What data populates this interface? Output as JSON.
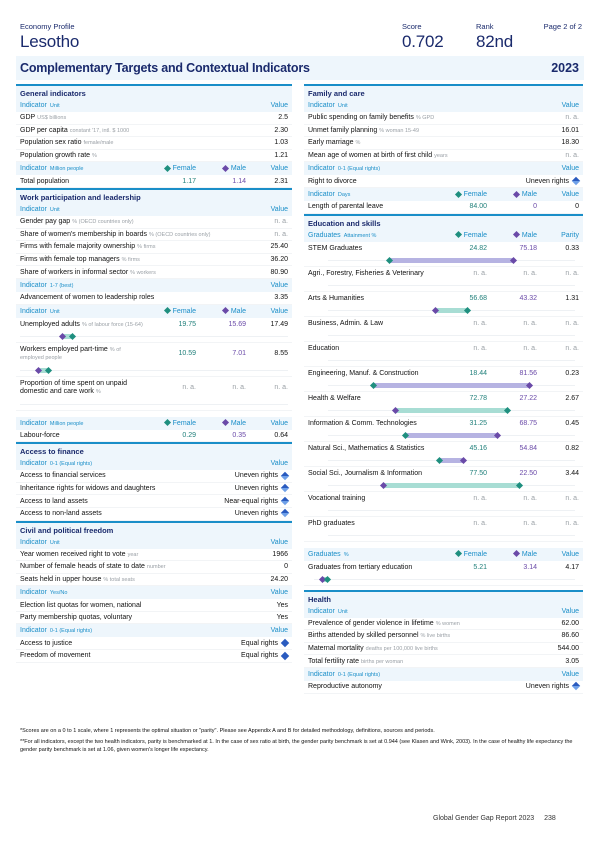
{
  "header": {
    "economy_profile_label": "Economy Profile",
    "country": "Lesotho",
    "score_label": "Score",
    "score": "0.702",
    "rank_label": "Rank",
    "rank": "82nd",
    "page_label": "Page 2 of 2"
  },
  "banner": {
    "title": "Complementary Targets and Contextual Indicators",
    "year": "2023"
  },
  "legend": {
    "female": "Female",
    "male": "Male",
    "value": "Value",
    "parity": "Parity",
    "indicator": "Indicator",
    "graduates": "Graduates"
  },
  "colors": {
    "accent": "#1a8ec8",
    "navy": "#1a2a6c",
    "female": "#1f8f7f",
    "male": "#6a4aa8",
    "female_bar": "#a8ddd4",
    "male_bar": "#b6b3e2",
    "header_bg": "#eef6fc"
  },
  "left": {
    "general": {
      "title": "General indicators",
      "h1": {
        "unit": "Unit"
      },
      "rows": [
        {
          "label": "GDP",
          "unit": "US$ billions",
          "value": "2.5"
        },
        {
          "label": "GDP per capita",
          "unit": "constant '17, intl. $ 1000",
          "value": "2.30"
        },
        {
          "label": "Population sex ratio",
          "unit": "female/male",
          "value": "1.03"
        },
        {
          "label": "Population growth rate",
          "unit": "%",
          "value": "1.21"
        }
      ],
      "h2": {
        "unit": "Million people"
      },
      "rows2": [
        {
          "label": "Total population",
          "female": "1.17",
          "male": "1.14",
          "value": "2.31"
        }
      ]
    },
    "work": {
      "title": "Work participation and leadership",
      "h1": {
        "unit": "Unit"
      },
      "rows": [
        {
          "label": "Gender pay gap",
          "unit": "% (OECD countries only)",
          "value": "n. a."
        },
        {
          "label": "Share of women's membership in boards",
          "unit": "% (OECD countries only)",
          "value": "n. a."
        },
        {
          "label": "Firms with female majority ownership",
          "unit": "% firms",
          "value": "25.40"
        },
        {
          "label": "Firms with female top managers",
          "unit": "% firms",
          "value": "36.20"
        },
        {
          "label": "Share of workers in informal sector",
          "unit": "% workers",
          "value": "80.90"
        }
      ],
      "h2": {
        "unit": "1-7 (best)"
      },
      "rows2": [
        {
          "label": "Advancement of women to leadership roles",
          "value": "3.35"
        }
      ],
      "h3": {
        "unit": "Unit"
      },
      "rows3": [
        {
          "label": "Unemployed adults",
          "unit": "% of labour force (15-64)",
          "female": "19.75",
          "male": "15.69",
          "value": "17.49",
          "f_pos": 19.75,
          "m_pos": 15.69
        },
        {
          "label": "Workers employed part-time",
          "unit": "% of employed people",
          "female": "10.59",
          "male": "7.01",
          "value": "8.55",
          "f_pos": 10.59,
          "m_pos": 7.01
        },
        {
          "label": "Proportion of time spent on unpaid domestic and care work",
          "unit": "%",
          "female": "n. a.",
          "male": "n. a.",
          "value": "n. a."
        }
      ],
      "h4": {
        "unit": "Million people"
      },
      "rows4": [
        {
          "label": "Labour-force",
          "female": "0.29",
          "male": "0.35",
          "value": "0.64"
        }
      ]
    },
    "finance": {
      "title": "Access to finance",
      "h1": {
        "unit": "0-1 (Equal rights)"
      },
      "rows": [
        {
          "label": "Access to financial services",
          "value": "Uneven rights"
        },
        {
          "label": "Inheritance rights for widows and daughters",
          "value": "Uneven rights"
        },
        {
          "label": "Access to land assets",
          "value": "Near-equal rights"
        },
        {
          "label": "Access to non-land assets",
          "value": "Uneven rights"
        }
      ]
    },
    "civil": {
      "title": "Civil and political freedom",
      "h1": {
        "unit": "Unit"
      },
      "rows": [
        {
          "label": "Year women received right to vote",
          "unit": "year",
          "value": "1966"
        },
        {
          "label": "Number of female heads of state to date",
          "unit": "number",
          "value": "0"
        },
        {
          "label": "Seats held in upper house",
          "unit": "% total seats",
          "value": "24.20"
        }
      ],
      "h2": {
        "unit": "Yes/No"
      },
      "rows2": [
        {
          "label": "Election list quotas for women, national",
          "value": "Yes"
        },
        {
          "label": "Party membership quotas, voluntary",
          "value": "Yes"
        }
      ],
      "h3": {
        "unit": "0-1 (Equal rights)"
      },
      "rows3": [
        {
          "label": "Access to justice",
          "value": "Equal rights"
        },
        {
          "label": "Freedom of movement",
          "value": "Equal rights"
        }
      ]
    }
  },
  "right": {
    "family": {
      "title": "Family and care",
      "h1": {
        "unit": "Unit"
      },
      "rows": [
        {
          "label": "Public spending on family benefits",
          "unit": "% GPD",
          "value": "n. a."
        },
        {
          "label": "Unmet family planning",
          "unit": "% woman 15-49",
          "value": "16.01"
        },
        {
          "label": "Early marriage",
          "unit": "%",
          "value": "18.30"
        },
        {
          "label": "Mean age of women at birth of first child",
          "unit": "years",
          "value": "n. a."
        }
      ],
      "h2": {
        "unit": "0-1 (Equal rights)"
      },
      "rows2": [
        {
          "label": "Right to divorce",
          "value": "Uneven rights"
        }
      ],
      "h3": {
        "unit": "Days"
      },
      "rows3": [
        {
          "label": "Length of parental leave",
          "female": "84.00",
          "male": "0",
          "value": "0"
        }
      ]
    },
    "education": {
      "title": "Education and skills",
      "h1": {
        "unit": "Attainment %"
      },
      "rows": [
        {
          "label": "STEM Graduates",
          "female": "24.82",
          "male": "75.18",
          "value": "0.33",
          "f_pos": 24.82,
          "m_pos": 75.18
        },
        {
          "label": "Agri., Forestry, Fisheries & Veterinary",
          "female": "n. a.",
          "male": "n. a.",
          "value": "n. a."
        },
        {
          "label": "Arts & Humanities",
          "female": "56.68",
          "male": "43.32",
          "value": "1.31",
          "f_pos": 56.68,
          "m_pos": 43.32
        },
        {
          "label": "Business, Admin. & Law",
          "female": "n. a.",
          "male": "n. a.",
          "value": "n. a."
        },
        {
          "label": "Education",
          "female": "n. a.",
          "male": "n. a.",
          "value": "n. a."
        },
        {
          "label": "Engineering, Manuf. & Construction",
          "female": "18.44",
          "male": "81.56",
          "value": "0.23",
          "f_pos": 18.44,
          "m_pos": 81.56
        },
        {
          "label": "Health & Welfare",
          "female": "72.78",
          "male": "27.22",
          "value": "2.67",
          "f_pos": 72.78,
          "m_pos": 27.22
        },
        {
          "label": "Information & Comm. Technologies",
          "female": "31.25",
          "male": "68.75",
          "value": "0.45",
          "f_pos": 31.25,
          "m_pos": 68.75
        },
        {
          "label": "Natural Sci., Mathematics & Statistics",
          "female": "45.16",
          "male": "54.84",
          "value": "0.82",
          "f_pos": 45.16,
          "m_pos": 54.84
        },
        {
          "label": "Social Sci., Journalism & Information",
          "female": "77.50",
          "male": "22.50",
          "value": "3.44",
          "f_pos": 77.5,
          "m_pos": 22.5
        },
        {
          "label": "Vocational training",
          "female": "n. a.",
          "male": "n. a.",
          "value": "n. a."
        },
        {
          "label": "PhD graduates",
          "female": "n. a.",
          "male": "n. a.",
          "value": "n. a."
        }
      ],
      "h2": {
        "unit": "%"
      },
      "rows2": [
        {
          "label": "Graduates from tertiary education",
          "female": "5.21",
          "male": "3.14",
          "value": "4.17",
          "f_pos": 5.21,
          "m_pos": 3.14
        }
      ]
    },
    "health": {
      "title": "Health",
      "h1": {
        "unit": "Unit"
      },
      "rows": [
        {
          "label": "Prevalence of gender violence in lifetime",
          "unit": "% women",
          "value": "62.00"
        },
        {
          "label": "Births attended by skilled personnel",
          "unit": "% live births",
          "value": "86.60"
        },
        {
          "label": "Maternal mortality",
          "unit": "deaths per 100,000 live births",
          "value": "544.00"
        },
        {
          "label": "Total fertility rate",
          "unit": "births per woman",
          "value": "3.05"
        }
      ],
      "h2": {
        "unit": "0-1 (Equal rights)"
      },
      "rows2": [
        {
          "label": "Reproductive autonomy",
          "value": "Uneven rights"
        }
      ]
    }
  },
  "footnotes": {
    "note1": "*Scores are on a 0 to 1 scale, where 1 represents the optimal situation or \"parity\". Please see Appendix A and B for detailed methodology, definitions, sources and periods.",
    "note2": "**For all indicators, except the two health indicators, parity is benchmarked at 1. In the case of sex ratio at birth, the gender parity benchmark is set at 0.944 (see Klasen and Wink, 2003). In the case of healthy life expectancy the gender parity benchmark is set at 1.06, given women's longer life expectancy."
  },
  "page_footer": {
    "report": "Global Gender Gap Report 2023",
    "page": "238"
  }
}
